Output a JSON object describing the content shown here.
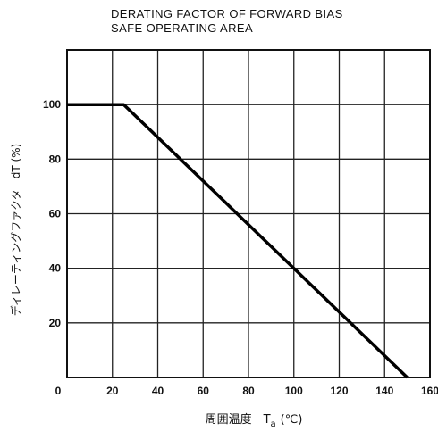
{
  "chart_data": {
    "type": "line",
    "title_lines": [
      "DERATING FACTOR OF FORWARD BIAS",
      "SAFE OPERATING AREA"
    ],
    "xlabel": "周囲温度　T",
    "xlabel_subscript": "a",
    "xlabel_unit": "(℃)",
    "ylabel": "ディレーティングファクタ　dT (%)",
    "xlim": [
      0,
      160
    ],
    "ylim": [
      0,
      120
    ],
    "x_ticks": [
      "0",
      "20",
      "40",
      "60",
      "80",
      "100",
      "120",
      "140",
      "160"
    ],
    "y_ticks": [
      "20",
      "40",
      "60",
      "80",
      "100"
    ],
    "grid": true,
    "legend": "none",
    "series": [
      {
        "x": [
          0,
          25,
          150
        ],
        "y": [
          100,
          100,
          0
        ]
      }
    ]
  }
}
